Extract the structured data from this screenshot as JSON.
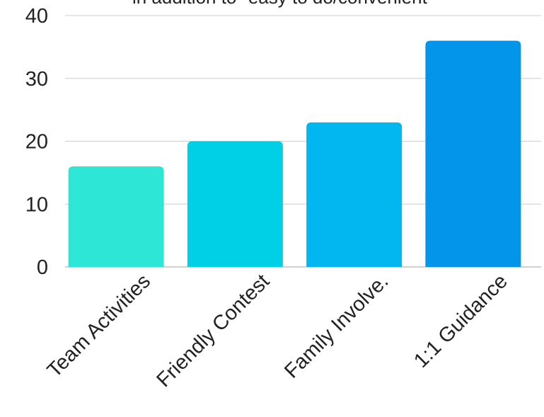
{
  "chart_data": {
    "type": "bar",
    "title": "in addition to \"easy to do/convenient\"",
    "categories": [
      "Team Activities",
      "Friendly Contest",
      "Family Involve.",
      "1:1 Guidance"
    ],
    "values": [
      16,
      20,
      23,
      36
    ],
    "colors": [
      "#2ee6d6",
      "#00d0e6",
      "#02b6ef",
      "#0295ea"
    ],
    "ylim": [
      0,
      40
    ],
    "yticks": [
      0,
      10,
      20,
      30,
      40
    ],
    "grid": true,
    "xlabel": "",
    "ylabel": ""
  }
}
